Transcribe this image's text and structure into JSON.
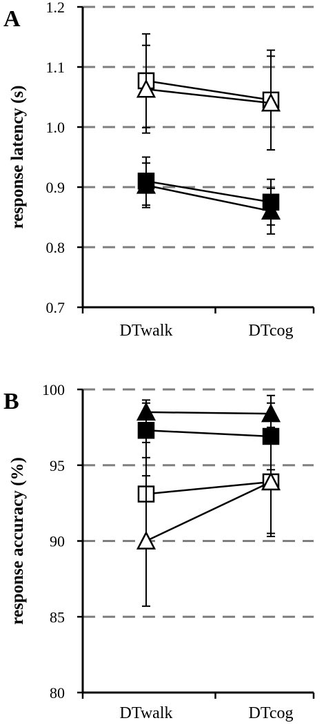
{
  "chart_data": [
    {
      "type": "line",
      "panel_label": "A",
      "ylabel": "response latency (s)",
      "xlabel": "",
      "categories": [
        "DTwalk",
        "DTcog"
      ],
      "yticks": [
        "0.7",
        "0.8",
        "0.9",
        "1.0",
        "1.1",
        "1.2"
      ],
      "ylim": [
        0.7,
        1.2
      ],
      "grid": "dashed horizontal",
      "series": [
        {
          "marker": "square-open",
          "values": [
            1.077,
            1.045
          ],
          "errors": [
            0.078,
            0.083
          ]
        },
        {
          "marker": "triangle-open",
          "values": [
            1.063,
            1.04
          ],
          "errors": [
            0.073,
            0.078
          ]
        },
        {
          "marker": "square-filled",
          "values": [
            0.91,
            0.875
          ],
          "errors": [
            0.04,
            0.038
          ]
        },
        {
          "marker": "triangle-filled",
          "values": [
            0.903,
            0.86
          ],
          "errors": [
            0.037,
            0.038
          ]
        }
      ]
    },
    {
      "type": "line",
      "panel_label": "B",
      "ylabel": "response accuracy (%)",
      "xlabel": "",
      "categories": [
        "DTwalk",
        "DTcog"
      ],
      "yticks": [
        "80",
        "85",
        "90",
        "95",
        "100"
      ],
      "ylim": [
        80,
        100
      ],
      "grid": "dashed horizontal",
      "series": [
        {
          "marker": "triangle-filled",
          "values": [
            98.5,
            98.4
          ],
          "errors": [
            0.8,
            1.2
          ]
        },
        {
          "marker": "square-filled",
          "values": [
            97.3,
            96.9
          ],
          "errors": [
            1.8,
            2.2
          ]
        },
        {
          "marker": "square-open",
          "values": [
            93.1,
            93.9
          ],
          "errors": [
            3.4,
            3.4
          ]
        },
        {
          "marker": "triangle-open",
          "values": [
            90.0,
            93.9
          ],
          "errors": [
            4.3,
            3.6
          ]
        }
      ]
    }
  ],
  "colors": {
    "ink": "#000000",
    "grid": "#7f7f7f",
    "fill_open": "#ffffff"
  }
}
